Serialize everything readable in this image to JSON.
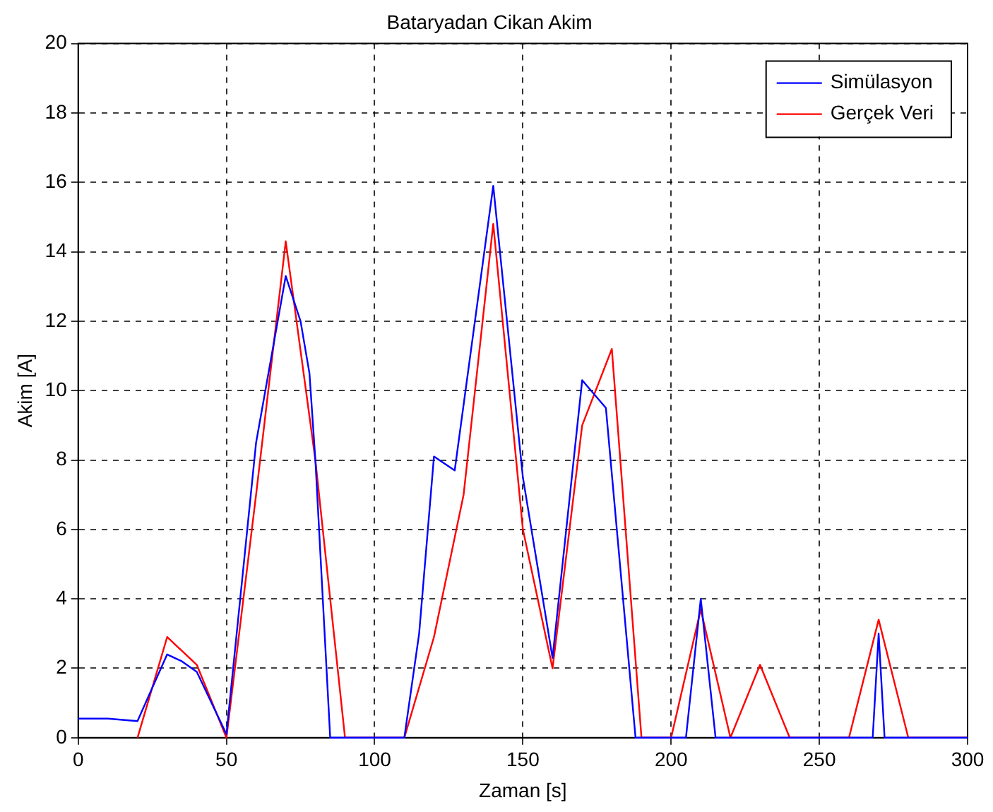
{
  "chart_data": {
    "type": "line",
    "title": "Bataryadan Cikan Akim",
    "xlabel": "Zaman [s]",
    "ylabel": "Akim [A]",
    "series": [
      {
        "name": "Simülasyon",
        "color": "#0000ff",
        "x": [
          0,
          10,
          20,
          30,
          35,
          40,
          50,
          60,
          70,
          75,
          78,
          80,
          85,
          110,
          115,
          120,
          127,
          140,
          150,
          160,
          170,
          178,
          188,
          205,
          210,
          215,
          268,
          270,
          272,
          300
        ],
        "values": [
          0.55,
          0.55,
          0.48,
          2.4,
          2.2,
          1.9,
          0.1,
          8.5,
          13.3,
          12,
          10.5,
          8,
          0,
          0,
          3,
          8.1,
          7.7,
          15.9,
          7.5,
          2.3,
          10.3,
          9.5,
          0,
          0,
          4,
          0,
          0,
          3,
          0,
          0
        ]
      },
      {
        "name": "Gerçek Veri",
        "color": "#ff0000",
        "x": [
          20,
          30,
          40,
          50,
          60,
          70,
          80,
          90,
          110,
          120,
          130,
          140,
          150,
          160,
          170,
          180,
          190,
          200,
          210,
          220,
          230,
          240,
          260,
          270,
          280,
          300
        ],
        "values": [
          0,
          2.9,
          2.1,
          0,
          7,
          14.3,
          8,
          0,
          0,
          2.9,
          7,
          14.8,
          6,
          2,
          9,
          11.2,
          0,
          0,
          3.7,
          0,
          2.1,
          0,
          0,
          3.4,
          0,
          0
        ]
      }
    ],
    "xlim": [
      0,
      300
    ],
    "xticks": [
      0,
      50,
      100,
      150,
      200,
      250,
      300
    ],
    "ylim": [
      0,
      20
    ],
    "yticks": [
      0,
      2,
      4,
      6,
      8,
      10,
      12,
      14,
      16,
      18,
      20
    ],
    "grid": true,
    "legend": "top right",
    "marker": "none",
    "line_style": "solid"
  }
}
